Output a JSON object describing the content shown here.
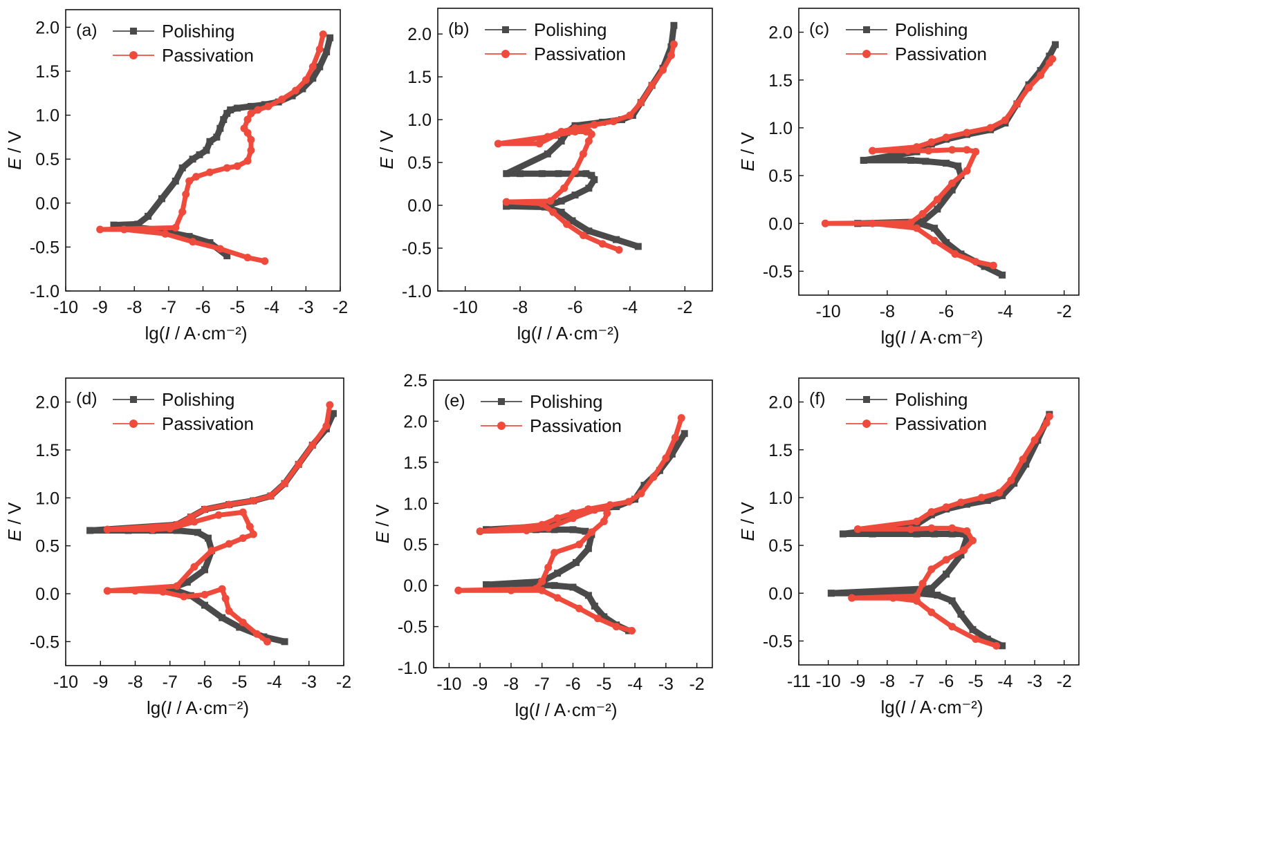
{
  "legend": {
    "series": [
      {
        "name": "Polishing",
        "color": "#4a4a4a",
        "marker": "square"
      },
      {
        "name": "Passivation",
        "color": "#ee4b3d",
        "marker": "circle"
      }
    ],
    "placement": "top-left"
  },
  "chart_data": [
    {
      "panel": "(a)",
      "type": "line",
      "xlabel": "lg(I / A·cm⁻²)",
      "ylabel": "E / V",
      "xlim": [
        -10,
        -2
      ],
      "ylim": [
        -1.0,
        2.2
      ],
      "xticks": [
        -10,
        -9,
        -8,
        -7,
        -6,
        -5,
        -4,
        -3,
        -2
      ],
      "yticks": [
        -1.0,
        -0.5,
        0.0,
        0.5,
        1.0,
        1.5,
        2.0
      ],
      "series": [
        {
          "name": "Polishing",
          "x": [
            -5.3,
            -5.8,
            -6.4,
            -7.4,
            -8.6,
            -7.9,
            -7.6,
            -7.2,
            -6.8,
            -6.6,
            -6.3,
            -6.1,
            -5.9,
            -5.8,
            -5.6,
            -5.5,
            -5.4,
            -5.3,
            -5.2,
            -5.0,
            -4.6,
            -4.2,
            -3.8,
            -3.4,
            -3.1,
            -2.8,
            -2.6,
            -2.4,
            -2.3
          ],
          "y": [
            -0.6,
            -0.45,
            -0.38,
            -0.3,
            -0.25,
            -0.24,
            -0.15,
            0.05,
            0.25,
            0.4,
            0.5,
            0.55,
            0.6,
            0.7,
            0.75,
            0.85,
            0.95,
            1.02,
            1.06,
            1.08,
            1.1,
            1.12,
            1.15,
            1.22,
            1.3,
            1.42,
            1.55,
            1.72,
            1.88
          ]
        },
        {
          "name": "Passivation",
          "x": [
            -4.2,
            -4.7,
            -5.5,
            -6.3,
            -7.1,
            -8.3,
            -9.0,
            -6.8,
            -6.6,
            -6.5,
            -6.4,
            -6.2,
            -5.8,
            -5.3,
            -5.0,
            -4.7,
            -4.6,
            -4.6,
            -4.7,
            -4.8,
            -4.7,
            -4.6,
            -4.4,
            -4.1,
            -3.7,
            -3.3,
            -3.0,
            -2.8,
            -2.6,
            -2.5
          ],
          "y": [
            -0.66,
            -0.62,
            -0.52,
            -0.44,
            -0.35,
            -0.3,
            -0.3,
            -0.28,
            -0.1,
            0.1,
            0.25,
            0.3,
            0.35,
            0.4,
            0.42,
            0.48,
            0.6,
            0.72,
            0.8,
            0.85,
            0.95,
            1.02,
            1.06,
            1.1,
            1.18,
            1.28,
            1.4,
            1.55,
            1.75,
            1.92
          ]
        }
      ]
    },
    {
      "panel": "(b)",
      "type": "line",
      "xlabel": "lg(I / A·cm⁻²)",
      "ylabel": "E / V",
      "xlim": [
        -11,
        -1
      ],
      "ylim": [
        -1.0,
        2.3
      ],
      "xticks": [
        -10,
        -8,
        -6,
        -4,
        -2
      ],
      "yticks": [
        -1.0,
        -0.5,
        0.0,
        0.5,
        1.0,
        1.5,
        2.0
      ],
      "series": [
        {
          "name": "Polishing",
          "x": [
            -3.7,
            -4.5,
            -5.5,
            -6.1,
            -6.5,
            -7.1,
            -8.5,
            -8.5,
            -7.0,
            -6.5,
            -6.0,
            -5.5,
            -5.3,
            -5.4,
            -5.6,
            -6.0,
            -6.6,
            -7.2,
            -8.0,
            -8.5,
            -7.0,
            -6.5,
            -6.3,
            -6.0,
            -5.0,
            -4.3,
            -3.9,
            -3.6,
            -3.2,
            -2.8,
            -2.5,
            -2.4
          ],
          "y": [
            -0.48,
            -0.4,
            -0.3,
            -0.18,
            -0.08,
            -0.02,
            -0.01,
            -0.01,
            0.0,
            0.05,
            0.12,
            0.2,
            0.3,
            0.35,
            0.37,
            0.37,
            0.37,
            0.37,
            0.37,
            0.37,
            0.6,
            0.75,
            0.85,
            0.93,
            0.97,
            1.0,
            1.05,
            1.2,
            1.4,
            1.6,
            1.85,
            2.1
          ]
        },
        {
          "name": "Passivation",
          "x": [
            -4.4,
            -5.0,
            -5.7,
            -6.3,
            -6.8,
            -7.2,
            -8.5,
            -8.5,
            -6.9,
            -6.4,
            -6.0,
            -5.7,
            -5.5,
            -5.4,
            -5.5,
            -5.6,
            -6.0,
            -6.7,
            -7.3,
            -8.8,
            -8.8,
            -7.0,
            -6.5,
            -6.0,
            -5.3,
            -4.6,
            -4.0,
            -3.6,
            -3.2,
            -2.8,
            -2.5,
            -2.4
          ],
          "y": [
            -0.52,
            -0.45,
            -0.35,
            -0.22,
            -0.08,
            0.02,
            0.04,
            0.04,
            0.05,
            0.2,
            0.4,
            0.6,
            0.75,
            0.83,
            0.86,
            0.86,
            0.86,
            0.82,
            0.72,
            0.72,
            0.72,
            0.8,
            0.86,
            0.9,
            0.94,
            0.98,
            1.05,
            1.2,
            1.4,
            1.58,
            1.75,
            1.88
          ]
        }
      ]
    },
    {
      "panel": "(c)",
      "type": "line",
      "xlabel": "lg(I / A·cm⁻²)",
      "ylabel": "E / V",
      "xlim": [
        -11,
        -1.5
      ],
      "ylim": [
        -0.75,
        2.25
      ],
      "xticks": [
        -10,
        -8,
        -6,
        -4,
        -2
      ],
      "yticks": [
        -0.5,
        0.0,
        0.5,
        1.0,
        1.5,
        2.0
      ],
      "series": [
        {
          "name": "Polishing",
          "x": [
            -4.1,
            -4.7,
            -5.5,
            -6.0,
            -6.4,
            -6.9,
            -9.0,
            -9.0,
            -6.8,
            -6.3,
            -5.8,
            -5.5,
            -5.6,
            -6.0,
            -6.7,
            -7.2,
            -8.8,
            -8.8,
            -7.0,
            -6.5,
            -6.0,
            -5.3,
            -4.5,
            -4.0,
            -3.6,
            -3.2,
            -2.8,
            -2.5,
            -2.3
          ],
          "y": [
            -0.54,
            -0.45,
            -0.32,
            -0.2,
            -0.05,
            0.0,
            0.0,
            0.0,
            0.02,
            0.15,
            0.35,
            0.5,
            0.6,
            0.63,
            0.65,
            0.66,
            0.66,
            0.66,
            0.75,
            0.83,
            0.88,
            0.93,
            0.98,
            1.05,
            1.25,
            1.45,
            1.6,
            1.75,
            1.87
          ]
        },
        {
          "name": "Passivation",
          "x": [
            -4.4,
            -5.0,
            -5.7,
            -6.4,
            -7.0,
            -8.5,
            -10.1,
            -10.1,
            -7.2,
            -6.8,
            -6.3,
            -5.8,
            -5.3,
            -5.0,
            -5.3,
            -5.8,
            -6.6,
            -7.3,
            -8.5,
            -8.5,
            -7.0,
            -6.5,
            -6.0,
            -5.3,
            -4.5,
            -4.0,
            -3.6,
            -3.2,
            -2.8,
            -2.5,
            -2.4
          ],
          "y": [
            -0.44,
            -0.4,
            -0.32,
            -0.18,
            -0.05,
            0.0,
            0.0,
            0.0,
            0.01,
            0.1,
            0.25,
            0.42,
            0.55,
            0.75,
            0.77,
            0.77,
            0.76,
            0.76,
            0.76,
            0.76,
            0.8,
            0.85,
            0.9,
            0.95,
            1.0,
            1.08,
            1.25,
            1.42,
            1.55,
            1.68,
            1.72
          ]
        }
      ]
    },
    {
      "panel": "(d)",
      "type": "line",
      "xlabel": "lg(I / A·cm⁻²)",
      "ylabel": "E / V",
      "xlim": [
        -10,
        -2
      ],
      "ylim": [
        -0.75,
        2.25
      ],
      "xticks": [
        -10,
        -9,
        -8,
        -7,
        -6,
        -5,
        -4,
        -3,
        -2
      ],
      "yticks": [
        -0.5,
        0.0,
        0.5,
        1.0,
        1.5,
        2.0
      ],
      "series": [
        {
          "name": "Polishing",
          "x": [
            -3.7,
            -4.3,
            -5.0,
            -5.5,
            -6.0,
            -6.4,
            -6.8,
            -7.3,
            -7.0,
            -6.5,
            -6.0,
            -5.8,
            -5.9,
            -6.2,
            -6.8,
            -7.5,
            -8.2,
            -9.3,
            -9.3,
            -6.8,
            -6.4,
            -6.0,
            -5.3,
            -4.6,
            -4.1,
            -3.7,
            -3.3,
            -2.9,
            -2.5,
            -2.3
          ],
          "y": [
            -0.5,
            -0.45,
            -0.35,
            -0.25,
            -0.12,
            -0.02,
            0.03,
            0.04,
            0.05,
            0.12,
            0.25,
            0.45,
            0.58,
            0.64,
            0.66,
            0.66,
            0.66,
            0.66,
            0.66,
            0.72,
            0.8,
            0.88,
            0.93,
            0.97,
            1.02,
            1.15,
            1.35,
            1.55,
            1.72,
            1.88
          ]
        },
        {
          "name": "Passivation",
          "x": [
            -4.2,
            -4.5,
            -4.9,
            -5.3,
            -5.4,
            -5.5,
            -6.0,
            -6.6,
            -7.2,
            -8.0,
            -8.8,
            -8.8,
            -6.8,
            -6.3,
            -5.8,
            -5.3,
            -4.9,
            -4.6,
            -4.7,
            -4.9,
            -5.6,
            -6.3,
            -7.0,
            -7.5,
            -8.8,
            -8.8,
            -6.8,
            -6.4,
            -6.0,
            -5.3,
            -4.6,
            -4.1,
            -3.7,
            -3.3,
            -2.9,
            -2.5,
            -2.4
          ],
          "y": [
            -0.5,
            -0.42,
            -0.3,
            -0.18,
            -0.05,
            0.05,
            -0.01,
            -0.03,
            0.02,
            0.03,
            0.03,
            0.03,
            0.08,
            0.28,
            0.45,
            0.52,
            0.58,
            0.62,
            0.7,
            0.85,
            0.82,
            0.75,
            0.68,
            0.67,
            0.67,
            0.67,
            0.72,
            0.8,
            0.88,
            0.93,
            0.97,
            1.02,
            1.15,
            1.35,
            1.55,
            1.75,
            1.97
          ]
        }
      ]
    },
    {
      "panel": "(e)",
      "type": "line",
      "xlabel": "lg(I / A·cm⁻²)",
      "ylabel": "E / V",
      "xlim": [
        -10.5,
        -1.5
      ],
      "ylim": [
        -1.0,
        2.5
      ],
      "xticks": [
        -10,
        -9,
        -8,
        -7,
        -6,
        -5,
        -4,
        -3,
        -2
      ],
      "yticks": [
        -1.0,
        -0.5,
        0.0,
        0.5,
        1.0,
        1.5,
        2.0,
        2.5
      ],
      "series": [
        {
          "name": "Polishing",
          "x": [
            -4.2,
            -4.6,
            -5.0,
            -5.3,
            -5.5,
            -6.0,
            -6.6,
            -7.5,
            -8.8,
            -8.8,
            -7.0,
            -6.5,
            -5.9,
            -5.5,
            -5.4,
            -5.6,
            -6.0,
            -6.6,
            -7.2,
            -8.8,
            -8.8,
            -7.0,
            -6.5,
            -6.0,
            -5.5,
            -4.6,
            -4.0,
            -3.7,
            -3.2,
            -2.8,
            -2.4
          ],
          "y": [
            -0.55,
            -0.48,
            -0.38,
            -0.25,
            -0.12,
            -0.02,
            0.0,
            0.01,
            0.01,
            0.01,
            0.05,
            0.15,
            0.28,
            0.45,
            0.62,
            0.66,
            0.68,
            0.68,
            0.68,
            0.68,
            0.68,
            0.72,
            0.8,
            0.87,
            0.92,
            0.96,
            1.05,
            1.22,
            1.4,
            1.6,
            1.85
          ]
        },
        {
          "name": "Passivation",
          "x": [
            -4.1,
            -4.6,
            -5.2,
            -5.8,
            -6.5,
            -7.0,
            -8.0,
            -9.7,
            -9.7,
            -7.2,
            -7.0,
            -6.8,
            -6.6,
            -5.8,
            -5.4,
            -5.0,
            -4.9,
            -4.9,
            -5.3,
            -6.0,
            -6.8,
            -7.5,
            -9.0,
            -9.0,
            -7.0,
            -6.5,
            -6.0,
            -5.5,
            -4.8,
            -4.2,
            -3.8,
            -3.4,
            -3.0,
            -2.7,
            -2.5
          ],
          "y": [
            -0.55,
            -0.5,
            -0.4,
            -0.28,
            -0.15,
            -0.06,
            -0.06,
            -0.06,
            -0.06,
            -0.04,
            0.05,
            0.22,
            0.4,
            0.5,
            0.65,
            0.78,
            0.88,
            0.95,
            0.92,
            0.82,
            0.7,
            0.67,
            0.66,
            0.66,
            0.74,
            0.82,
            0.88,
            0.93,
            0.98,
            1.02,
            1.12,
            1.32,
            1.55,
            1.8,
            2.04
          ]
        }
      ]
    },
    {
      "panel": "(f)",
      "type": "line",
      "xlabel": "lg(I / A·cm⁻²)",
      "ylabel": "E / V",
      "xlim": [
        -11,
        -1.5
      ],
      "ylim": [
        -0.75,
        2.25
      ],
      "xticks": [
        -11,
        -10,
        -9,
        -8,
        -7,
        -6,
        -5,
        -4,
        -3,
        -2
      ],
      "yticks": [
        -0.5,
        0.0,
        0.5,
        1.0,
        1.5,
        2.0
      ],
      "series": [
        {
          "name": "Polishing",
          "x": [
            -4.1,
            -4.6,
            -5.1,
            -5.5,
            -5.8,
            -6.3,
            -7.0,
            -9.9,
            -9.9,
            -6.5,
            -6.0,
            -5.5,
            -5.3,
            -5.4,
            -5.8,
            -6.4,
            -7.0,
            -8.5,
            -9.5,
            -9.5,
            -7.0,
            -6.5,
            -6.0,
            -5.3,
            -4.6,
            -4.1,
            -3.7,
            -3.3,
            -2.9,
            -2.5
          ],
          "y": [
            -0.55,
            -0.48,
            -0.38,
            -0.22,
            -0.08,
            -0.02,
            0.0,
            0.0,
            0.0,
            0.05,
            0.2,
            0.4,
            0.58,
            0.62,
            0.62,
            0.62,
            0.62,
            0.62,
            0.62,
            0.62,
            0.72,
            0.82,
            0.88,
            0.93,
            0.97,
            1.02,
            1.15,
            1.35,
            1.6,
            1.87
          ]
        },
        {
          "name": "Passivation",
          "x": [
            -4.3,
            -5.0,
            -5.8,
            -6.5,
            -7.0,
            -7.8,
            -9.2,
            -9.2,
            -7.0,
            -6.8,
            -6.5,
            -6.0,
            -5.4,
            -5.1,
            -5.3,
            -5.8,
            -6.5,
            -7.2,
            -9.0,
            -9.0,
            -7.0,
            -6.5,
            -6.0,
            -5.5,
            -4.8,
            -4.2,
            -3.8,
            -3.4,
            -3.0,
            -2.6,
            -2.5
          ],
          "y": [
            -0.55,
            -0.48,
            -0.35,
            -0.2,
            -0.08,
            -0.05,
            -0.05,
            -0.05,
            -0.03,
            0.1,
            0.25,
            0.35,
            0.45,
            0.55,
            0.65,
            0.68,
            0.68,
            0.67,
            0.67,
            0.67,
            0.75,
            0.85,
            0.9,
            0.95,
            1.0,
            1.05,
            1.18,
            1.4,
            1.6,
            1.78,
            1.85
          ]
        }
      ]
    }
  ]
}
